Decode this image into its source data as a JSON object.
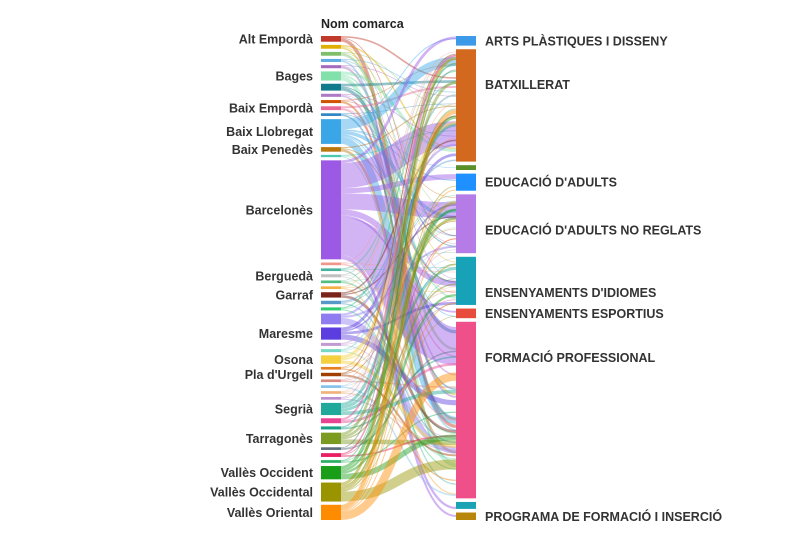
{
  "chart_data": {
    "type": "sankey",
    "source_header": "Nom comarca",
    "sources": [
      {
        "name": "Alt Empordà",
        "shown": true,
        "value": 1.5,
        "color": "#c0392b"
      },
      {
        "name": "",
        "shown": false,
        "value": 1.0,
        "color": "#e0b000"
      },
      {
        "name": "",
        "shown": false,
        "value": 1.0,
        "color": "#7fbf6a"
      },
      {
        "name": "",
        "shown": false,
        "value": 0.8,
        "color": "#5dade2"
      },
      {
        "name": "",
        "shown": false,
        "value": 0.8,
        "color": "#a569bd"
      },
      {
        "name": "Bages",
        "shown": true,
        "value": 2.4,
        "color": "#82e0aa"
      },
      {
        "name": "",
        "shown": false,
        "value": 1.8,
        "color": "#117a8b"
      },
      {
        "name": "",
        "shown": false,
        "value": 0.8,
        "color": "#af7ac5"
      },
      {
        "name": "",
        "shown": false,
        "value": 0.8,
        "color": "#d35400"
      },
      {
        "name": "Baix Empordà",
        "shown": true,
        "value": 1.0,
        "color": "#e86a9a"
      },
      {
        "name": "",
        "shown": false,
        "value": 0.7,
        "color": "#2e86c1"
      },
      {
        "name": "Baix Llobregat",
        "shown": true,
        "value": 6.5,
        "color": "#3aa6e8"
      },
      {
        "name": "Baix Penedès",
        "shown": true,
        "value": 1.2,
        "color": "#b9770e"
      },
      {
        "name": "",
        "shown": false,
        "value": 0.6,
        "color": "#48c9b0"
      },
      {
        "name": "Barcelonès",
        "shown": true,
        "value": 26.0,
        "color": "#9b59e6"
      },
      {
        "name": "",
        "shown": false,
        "value": 0.7,
        "color": "#f1948a"
      },
      {
        "name": "",
        "shown": false,
        "value": 0.7,
        "color": "#45b39d"
      },
      {
        "name": "Berguedà",
        "shown": true,
        "value": 0.8,
        "color": "#c0c0c0"
      },
      {
        "name": "",
        "shown": false,
        "value": 0.7,
        "color": "#52be80"
      },
      {
        "name": "",
        "shown": false,
        "value": 0.7,
        "color": "#f5b041"
      },
      {
        "name": "Garraf",
        "shown": true,
        "value": 1.4,
        "color": "#7b241c"
      },
      {
        "name": "",
        "shown": false,
        "value": 0.9,
        "color": "#5499c7"
      },
      {
        "name": "",
        "shown": false,
        "value": 0.8,
        "color": "#2ecc71"
      },
      {
        "name": "",
        "shown": false,
        "value": 2.8,
        "color": "#8e7cf0"
      },
      {
        "name": "Maresme",
        "shown": true,
        "value": 3.2,
        "color": "#5b3de0"
      },
      {
        "name": "",
        "shown": false,
        "value": 0.8,
        "color": "#c39bd3"
      },
      {
        "name": "",
        "shown": false,
        "value": 0.8,
        "color": "#76d7c4"
      },
      {
        "name": "Osona",
        "shown": true,
        "value": 2.2,
        "color": "#f4d03f"
      },
      {
        "name": "",
        "shown": false,
        "value": 0.7,
        "color": "#e67e22"
      },
      {
        "name": "Pla d'Urgell",
        "shown": true,
        "value": 0.9,
        "color": "#a04000"
      },
      {
        "name": "",
        "shown": false,
        "value": 0.7,
        "color": "#d98880"
      },
      {
        "name": "",
        "shown": false,
        "value": 0.7,
        "color": "#85c1e9"
      },
      {
        "name": "",
        "shown": false,
        "value": 0.7,
        "color": "#f0b27a"
      },
      {
        "name": "",
        "shown": false,
        "value": 0.7,
        "color": "#bb8fce"
      },
      {
        "name": "Segrià",
        "shown": true,
        "value": 3.2,
        "color": "#20a89a"
      },
      {
        "name": "",
        "shown": false,
        "value": 1.3,
        "color": "#e84393"
      },
      {
        "name": "",
        "shown": false,
        "value": 0.8,
        "color": "#16a085"
      },
      {
        "name": "Tarragonès",
        "shown": true,
        "value": 3.0,
        "color": "#7a9a20"
      },
      {
        "name": "",
        "shown": false,
        "value": 0.7,
        "color": "#5d6d7e"
      },
      {
        "name": "",
        "shown": false,
        "value": 1.0,
        "color": "#e91e63"
      },
      {
        "name": "",
        "shown": false,
        "value": 0.7,
        "color": "#27ae60"
      },
      {
        "name": "Vallès Occident",
        "shown": true,
        "value": 3.5,
        "color": "#1a9e1a"
      },
      {
        "name": "Vallès Occidental",
        "shown": true,
        "value": 5.0,
        "color": "#999400"
      },
      {
        "name": "Vallès Oriental",
        "shown": true,
        "value": 4.0,
        "color": "#ff8c00"
      }
    ],
    "targets": [
      {
        "name": "ARTS PLÀSTIQUES I DISSENY",
        "shown": true,
        "value": 1.8,
        "color": "#3d9ae8"
      },
      {
        "name": "BATXILLERAT",
        "shown": true,
        "value": 21.0,
        "color": "#d2691e"
      },
      {
        "name": "",
        "shown": false,
        "value": 0.9,
        "color": "#5a8f29"
      },
      {
        "name": "EDUCACIÓ D'ADULTS",
        "shown": true,
        "value": 3.2,
        "color": "#1e90ff"
      },
      {
        "name": "EDUCACIÓ D'ADULTS NO REGLATS",
        "shown": true,
        "value": 11.0,
        "color": "#b57ce8"
      },
      {
        "name": "ENSENYAMENTS D'IDIOMES",
        "shown": true,
        "value": 9.0,
        "color": "#17a2b8"
      },
      {
        "name": "ENSENYAMENTS ESPORTIUS",
        "shown": true,
        "value": 1.8,
        "color": "#e74c3c"
      },
      {
        "name": "FORMACIÓ PROFESSIONAL",
        "shown": true,
        "value": 33.0,
        "color": "#f0508a"
      },
      {
        "name": "",
        "shown": false,
        "value": 1.3,
        "color": "#1aa3b5"
      },
      {
        "name": "PROGRAMA DE FORMACIÓ I INSERCIÓ",
        "shown": true,
        "value": 1.4,
        "color": "#b8860b"
      }
    ]
  }
}
